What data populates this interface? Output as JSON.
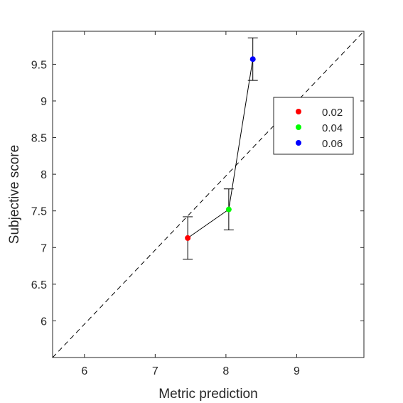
{
  "chart_data": {
    "type": "scatter",
    "xlabel": "Metric prediction",
    "ylabel": "Subjective score",
    "xlim": [
      5.55,
      9.95
    ],
    "ylim": [
      5.5,
      9.95
    ],
    "xticks": [
      6,
      7,
      8,
      9
    ],
    "yticks": [
      6,
      6.5,
      7,
      7.5,
      8,
      8.5,
      9,
      9.5
    ],
    "grid": false,
    "reference_line": {
      "style": "dashed",
      "from": [
        5.55,
        5.5
      ],
      "to": [
        9.95,
        9.95
      ]
    },
    "points": [
      {
        "x": 7.46,
        "y": 7.13,
        "err": 0.29,
        "label": "0.02",
        "color": "#ff0000"
      },
      {
        "x": 8.04,
        "y": 7.52,
        "err": 0.28,
        "label": "0.04",
        "color": "#00ff00"
      },
      {
        "x": 8.38,
        "y": 9.57,
        "err": 0.29,
        "label": "0.06",
        "color": "#0000ff"
      }
    ],
    "connecting_line_color": "#000000",
    "legend": {
      "placement": "upper-right",
      "entries": [
        "0.02",
        "0.04",
        "0.06"
      ]
    }
  }
}
